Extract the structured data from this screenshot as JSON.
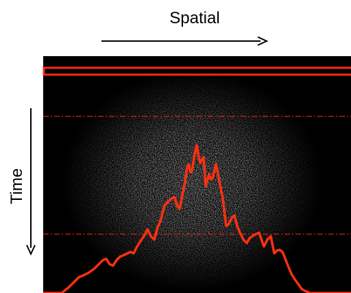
{
  "labels": {
    "spatial": "Spatial",
    "time": "Time"
  }
}
